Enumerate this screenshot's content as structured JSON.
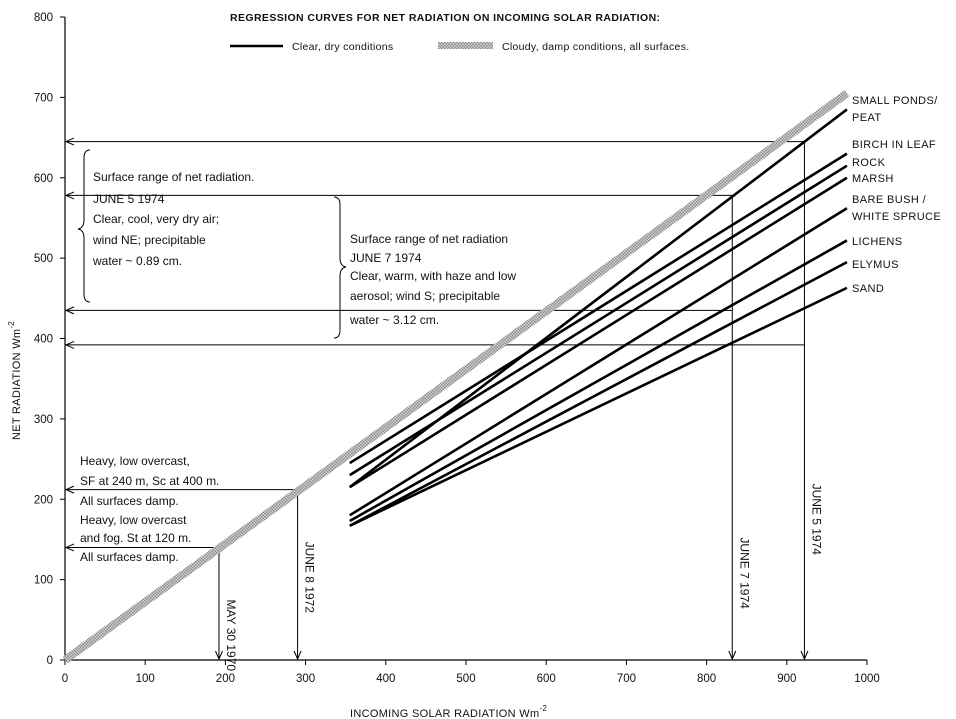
{
  "chart_data": {
    "type": "line",
    "title": "REGRESSION CURVES FOR NET RADIATION ON INCOMING SOLAR RADIATION:",
    "xlabel": "INCOMING SOLAR RADIATION  Wm",
    "xlabel_sup": "-2",
    "ylabel": "NET RADIATION  Wm",
    "ylabel_sup": "-2",
    "xlim": [
      0,
      1000
    ],
    "ylim": [
      0,
      800
    ],
    "xticks": [
      0,
      100,
      200,
      300,
      400,
      500,
      600,
      700,
      800,
      900,
      1000
    ],
    "yticks": [
      0,
      100,
      200,
      300,
      400,
      500,
      600,
      700,
      800
    ],
    "grid": false,
    "legend": {
      "position": "top",
      "entries": [
        {
          "label": "Clear, dry conditions",
          "style": "solid-black"
        },
        {
          "label": "Cloudy, damp conditions, all surfaces.",
          "style": "hatched-gray"
        }
      ]
    },
    "series": [
      {
        "name": "Cloudy, damp conditions, all surfaces.",
        "style": "hatched",
        "x": [
          0,
          975
        ],
        "y": [
          0,
          705
        ]
      },
      {
        "name": "SMALL PONDS/ PEAT",
        "label_lines": [
          "SMALL PONDS/",
          "PEAT"
        ],
        "x": [
          355,
          975
        ],
        "y": [
          215,
          685
        ]
      },
      {
        "name": "BIRCH IN LEAF",
        "label_lines": [
          "BIRCH IN LEAF"
        ],
        "x": [
          355,
          975
        ],
        "y": [
          245,
          630
        ]
      },
      {
        "name": "ROCK",
        "label_lines": [
          "ROCK"
        ],
        "x": [
          355,
          975
        ],
        "y": [
          230,
          615
        ]
      },
      {
        "name": "MARSH",
        "label_lines": [
          "MARSH"
        ],
        "x": [
          355,
          975
        ],
        "y": [
          215,
          600
        ]
      },
      {
        "name": "BARE BUSH / WHITE SPRUCE",
        "label_lines": [
          "BARE BUSH /",
          "WHITE SPRUCE"
        ],
        "x": [
          355,
          975
        ],
        "y": [
          180,
          562
        ]
      },
      {
        "name": "LICHENS",
        "label_lines": [
          "LICHENS"
        ],
        "x": [
          355,
          975
        ],
        "y": [
          173,
          522
        ]
      },
      {
        "name": "ELYMUS",
        "label_lines": [
          "ELYMUS"
        ],
        "x": [
          355,
          975
        ],
        "y": [
          167,
          495
        ]
      },
      {
        "name": "SAND",
        "label_lines": [
          "SAND"
        ],
        "x": [
          355,
          975
        ],
        "y": [
          167,
          463
        ]
      }
    ],
    "reference_lines": {
      "horizontal": [
        {
          "y": 645,
          "x_end": 922
        },
        {
          "y": 578,
          "x_end": 832
        },
        {
          "y": 435,
          "x_end": 832
        },
        {
          "y": 392,
          "x_end": 922
        },
        {
          "y": 212,
          "x_end": 290
        },
        {
          "y": 140,
          "x_end": 192
        }
      ],
      "vertical": [
        {
          "x": 192,
          "label": "MAY 30 1970"
        },
        {
          "x": 290,
          "label": "JUNE 8 1972"
        },
        {
          "x": 832,
          "label": "JUNE 7 1974"
        },
        {
          "x": 922,
          "label": "JUNE 5 1974"
        }
      ]
    },
    "annotations": [
      {
        "id": "june5",
        "lines": [
          "Surface range of net radiation.",
          "JUNE 5 1974",
          "Clear, cool, very dry air;",
          "wind NE; precipitable",
          "water ~ 0.89 cm."
        ]
      },
      {
        "id": "june7",
        "lines": [
          "Surface range of net radiation",
          "JUNE 7 1974",
          "Clear, warm, with haze and low",
          "aerosol; wind S; precipitable",
          "water ~ 3.12 cm."
        ]
      },
      {
        "id": "sf240",
        "lines": [
          "Heavy, low overcast,",
          "SF at 240 m, Sc at 400 m.",
          "All surfaces damp."
        ]
      },
      {
        "id": "st120",
        "lines": [
          "Heavy, low overcast",
          "and fog. St at 120 m.",
          "All surfaces damp."
        ]
      }
    ]
  }
}
